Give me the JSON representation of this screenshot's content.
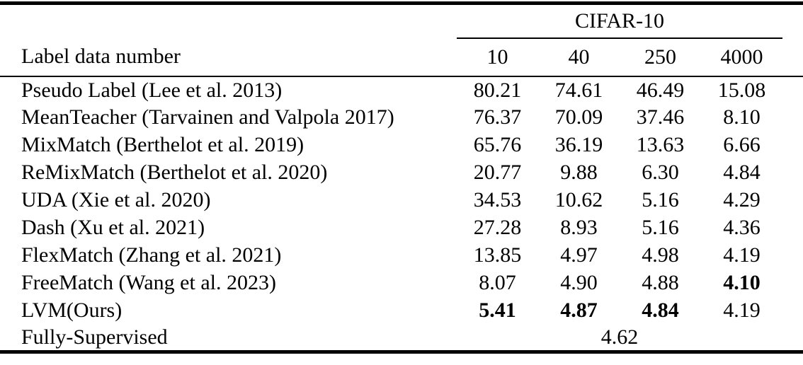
{
  "colors": {
    "background": "#ffffff",
    "text": "#000000",
    "rule": "#000000"
  },
  "table": {
    "group_header": "CIFAR-10",
    "row_label_header": "Label data number",
    "columns": [
      "10",
      "40",
      "250",
      "4000"
    ],
    "rows": [
      {
        "method": "Pseudo Label (Lee et al. 2013)",
        "values": [
          "80.21",
          "74.61",
          "46.49",
          "15.08"
        ],
        "bold": [
          false,
          false,
          false,
          false
        ]
      },
      {
        "method": "MeanTeacher (Tarvainen and Valpola 2017)",
        "values": [
          "76.37",
          "70.09",
          "37.46",
          "8.10"
        ],
        "bold": [
          false,
          false,
          false,
          false
        ]
      },
      {
        "method": "MixMatch (Berthelot et al. 2019)",
        "values": [
          "65.76",
          "36.19",
          "13.63",
          "6.66"
        ],
        "bold": [
          false,
          false,
          false,
          false
        ]
      },
      {
        "method": "ReMixMatch (Berthelot et al. 2020)",
        "values": [
          "20.77",
          "9.88",
          "6.30",
          "4.84"
        ],
        "bold": [
          false,
          false,
          false,
          false
        ]
      },
      {
        "method": "UDA (Xie et al. 2020)",
        "values": [
          "34.53",
          "10.62",
          "5.16",
          "4.29"
        ],
        "bold": [
          false,
          false,
          false,
          false
        ]
      },
      {
        "method": "Dash (Xu et al. 2021)",
        "values": [
          "27.28",
          "8.93",
          "5.16",
          "4.36"
        ],
        "bold": [
          false,
          false,
          false,
          false
        ]
      },
      {
        "method": "FlexMatch (Zhang et al. 2021)",
        "values": [
          "13.85",
          "4.97",
          "4.98",
          "4.19"
        ],
        "bold": [
          false,
          false,
          false,
          false
        ]
      },
      {
        "method": "FreeMatch (Wang et al. 2023)",
        "values": [
          "8.07",
          "4.90",
          "4.88",
          "4.10"
        ],
        "bold": [
          false,
          false,
          false,
          true
        ]
      },
      {
        "method": "LVM(Ours)",
        "values": [
          "5.41",
          "4.87",
          "4.84",
          "4.19"
        ],
        "bold": [
          true,
          true,
          true,
          false
        ]
      }
    ],
    "span_row": {
      "method": "Fully-Supervised",
      "value": "4.62"
    }
  }
}
